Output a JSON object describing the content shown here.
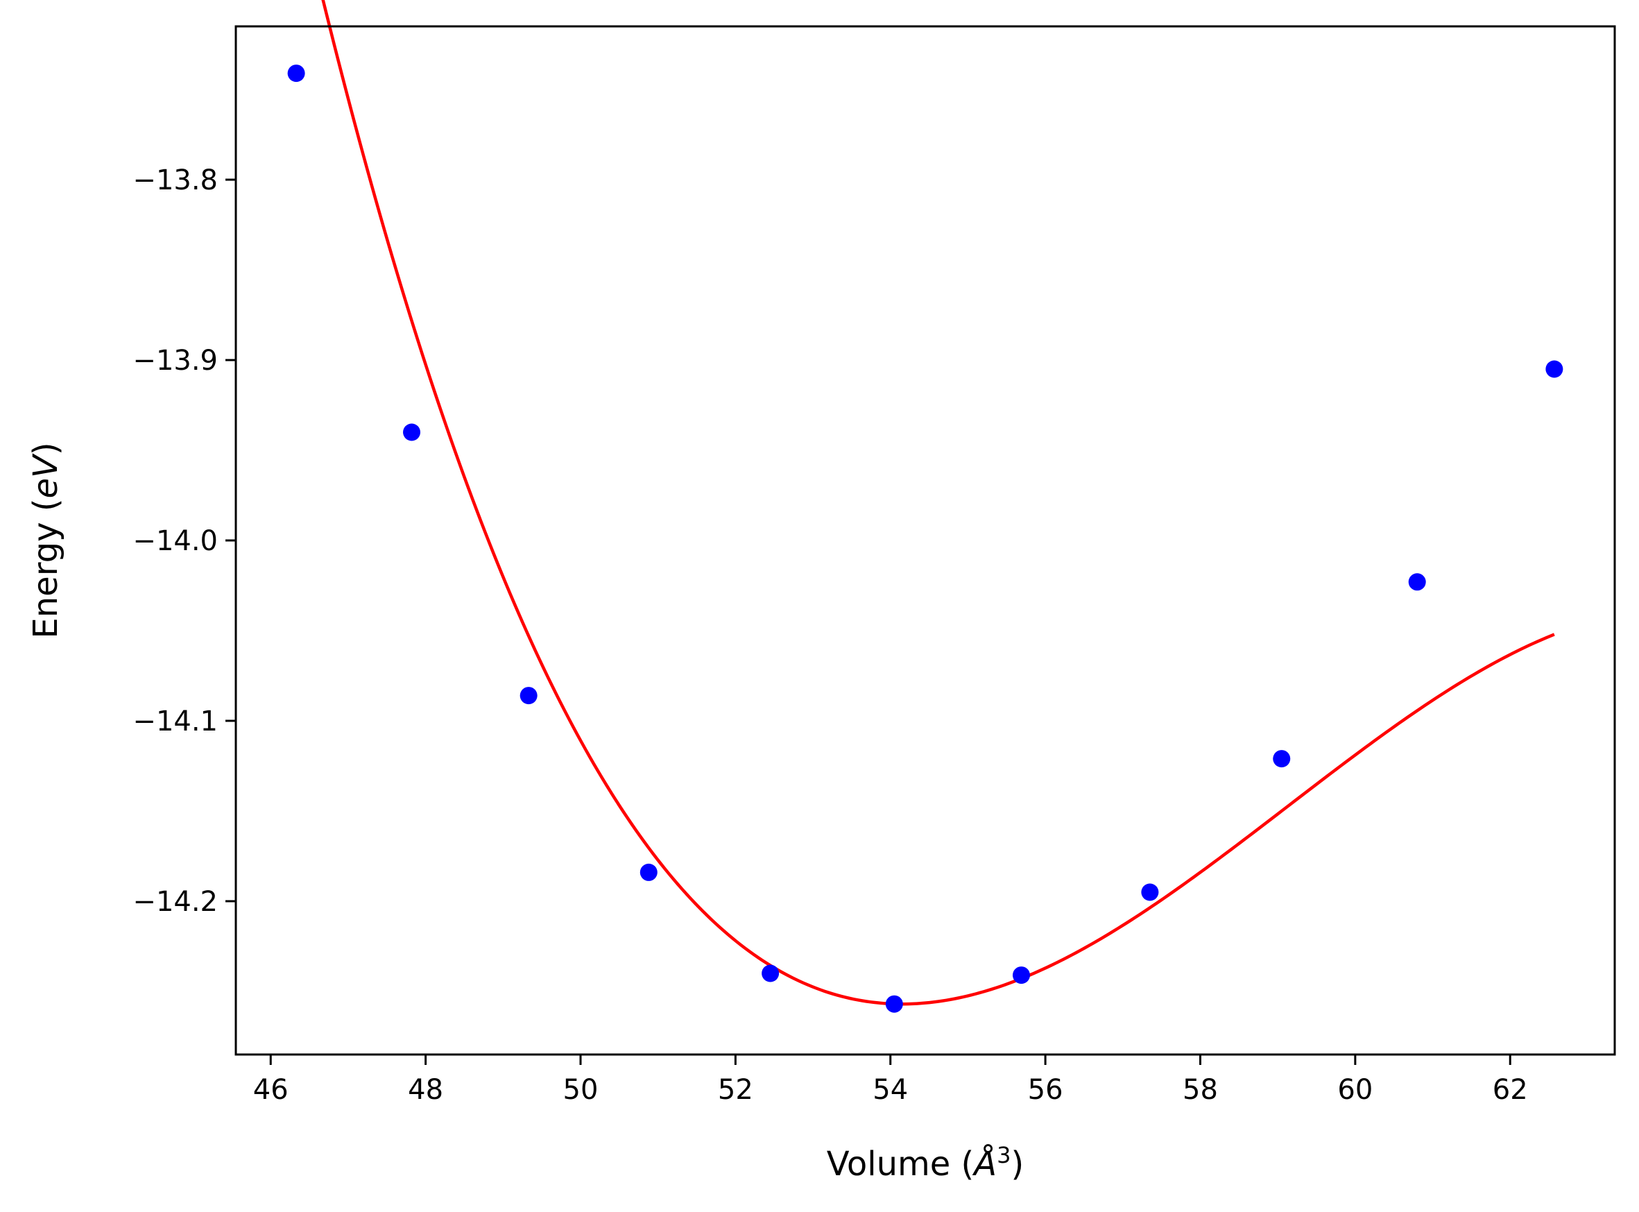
{
  "chart_data": {
    "type": "scatter",
    "title": "",
    "xlabel_main": "Volume (",
    "xlabel_unit": "Å",
    "xlabel_sup": "3",
    "xlabel_close": ")",
    "xlabel": "Volume (Å³)",
    "ylabel_main": "Energy (",
    "ylabel_unit": "eV",
    "ylabel_close": ")",
    "ylabel": "Energy (eV)",
    "xlim": [
      45.55,
      63.35
    ],
    "ylim": [
      -14.285,
      -13.715
    ],
    "xticks": [
      46,
      48,
      50,
      52,
      54,
      56,
      58,
      60,
      62
    ],
    "xtick_labels": [
      "46",
      "48",
      "50",
      "52",
      "54",
      "56",
      "58",
      "60",
      "62"
    ],
    "yticks": [
      -13.8,
      -13.9,
      -14.0,
      -14.1,
      -14.2
    ],
    "ytick_labels": [
      "−13.8",
      "−13.9",
      "−14.0",
      "−14.1",
      "−14.2"
    ],
    "grid": false,
    "series": [
      {
        "kind": "points",
        "color": "#0000ff",
        "x": [
          46.33,
          47.82,
          49.33,
          50.88,
          52.45,
          54.05,
          55.69,
          57.35,
          59.05,
          60.8,
          62.57
        ],
        "y": [
          -13.741,
          -13.94,
          -14.086,
          -14.184,
          -14.24,
          -14.257,
          -14.241,
          -14.195,
          -14.121,
          -14.023,
          -13.905
        ]
      },
      {
        "kind": "line",
        "color": "#ff0000",
        "fit": {
          "x_min": 46.33,
          "x_max": 62.57,
          "x0": 54.15,
          "e0": -14.257,
          "c2": 0.006637,
          "c3": -0.000445
        }
      }
    ]
  }
}
